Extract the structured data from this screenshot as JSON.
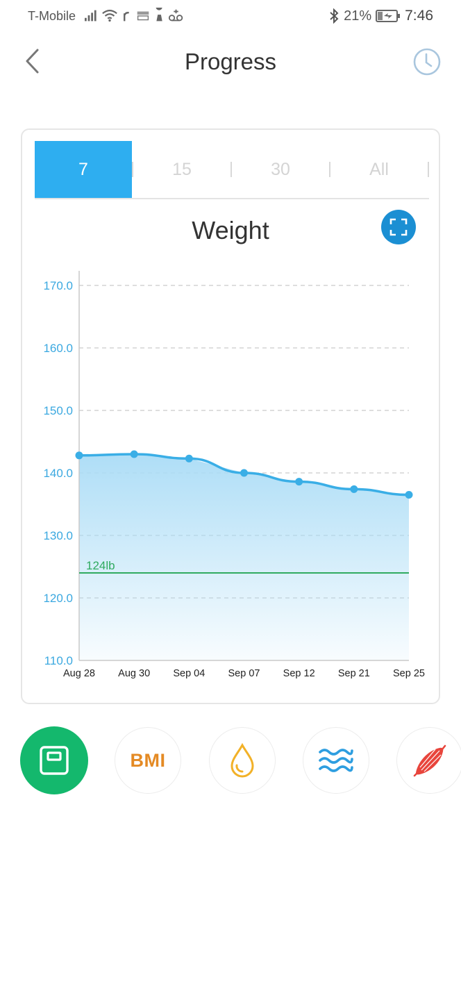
{
  "status_bar": {
    "carrier": "T-Mobile",
    "battery": "21%",
    "time": "7:46"
  },
  "header": {
    "title": "Progress"
  },
  "period_tabs": [
    {
      "label": "7",
      "active": true
    },
    {
      "label": "15",
      "active": false
    },
    {
      "label": "30",
      "active": false
    },
    {
      "label": "All",
      "active": false
    }
  ],
  "chart_data": {
    "type": "area",
    "title": "Weight",
    "categories": [
      "Aug 28",
      "Aug 30",
      "Sep 04",
      "Sep 07",
      "Sep 12",
      "Sep 21",
      "Sep 25"
    ],
    "values": [
      142.8,
      143.0,
      142.3,
      140.0,
      138.6,
      137.4,
      136.5
    ],
    "y_ticks": [
      "170.0",
      "160.0",
      "150.0",
      "140.0",
      "130.0",
      "120.0",
      "110.0"
    ],
    "ylim": [
      110,
      171
    ],
    "grid": "dashed horizontal",
    "goal": {
      "value": 124,
      "label": "124lb"
    },
    "colors": {
      "line": "#3aaee6",
      "fill": "#aadcf6",
      "goal": "#2faa5f",
      "tick_label": "#3aa8e0",
      "grid": "#bdbdbd"
    }
  },
  "metrics": [
    {
      "name": "weight",
      "icon": "scale-icon",
      "active": true
    },
    {
      "name": "bmi",
      "label": "BMI",
      "active": false
    },
    {
      "name": "body-water",
      "icon": "water-drop-icon",
      "active": false
    },
    {
      "name": "body-fat",
      "icon": "waves-icon",
      "active": false
    },
    {
      "name": "muscle",
      "icon": "muscle-icon",
      "active": false
    }
  ],
  "colors": {
    "accent": "#2eaef0",
    "active_metric": "#14b86d",
    "bmi": "#e48a24",
    "drop": "#f2b128",
    "waves": "#2e9ee0",
    "muscle": "#e8453c"
  }
}
